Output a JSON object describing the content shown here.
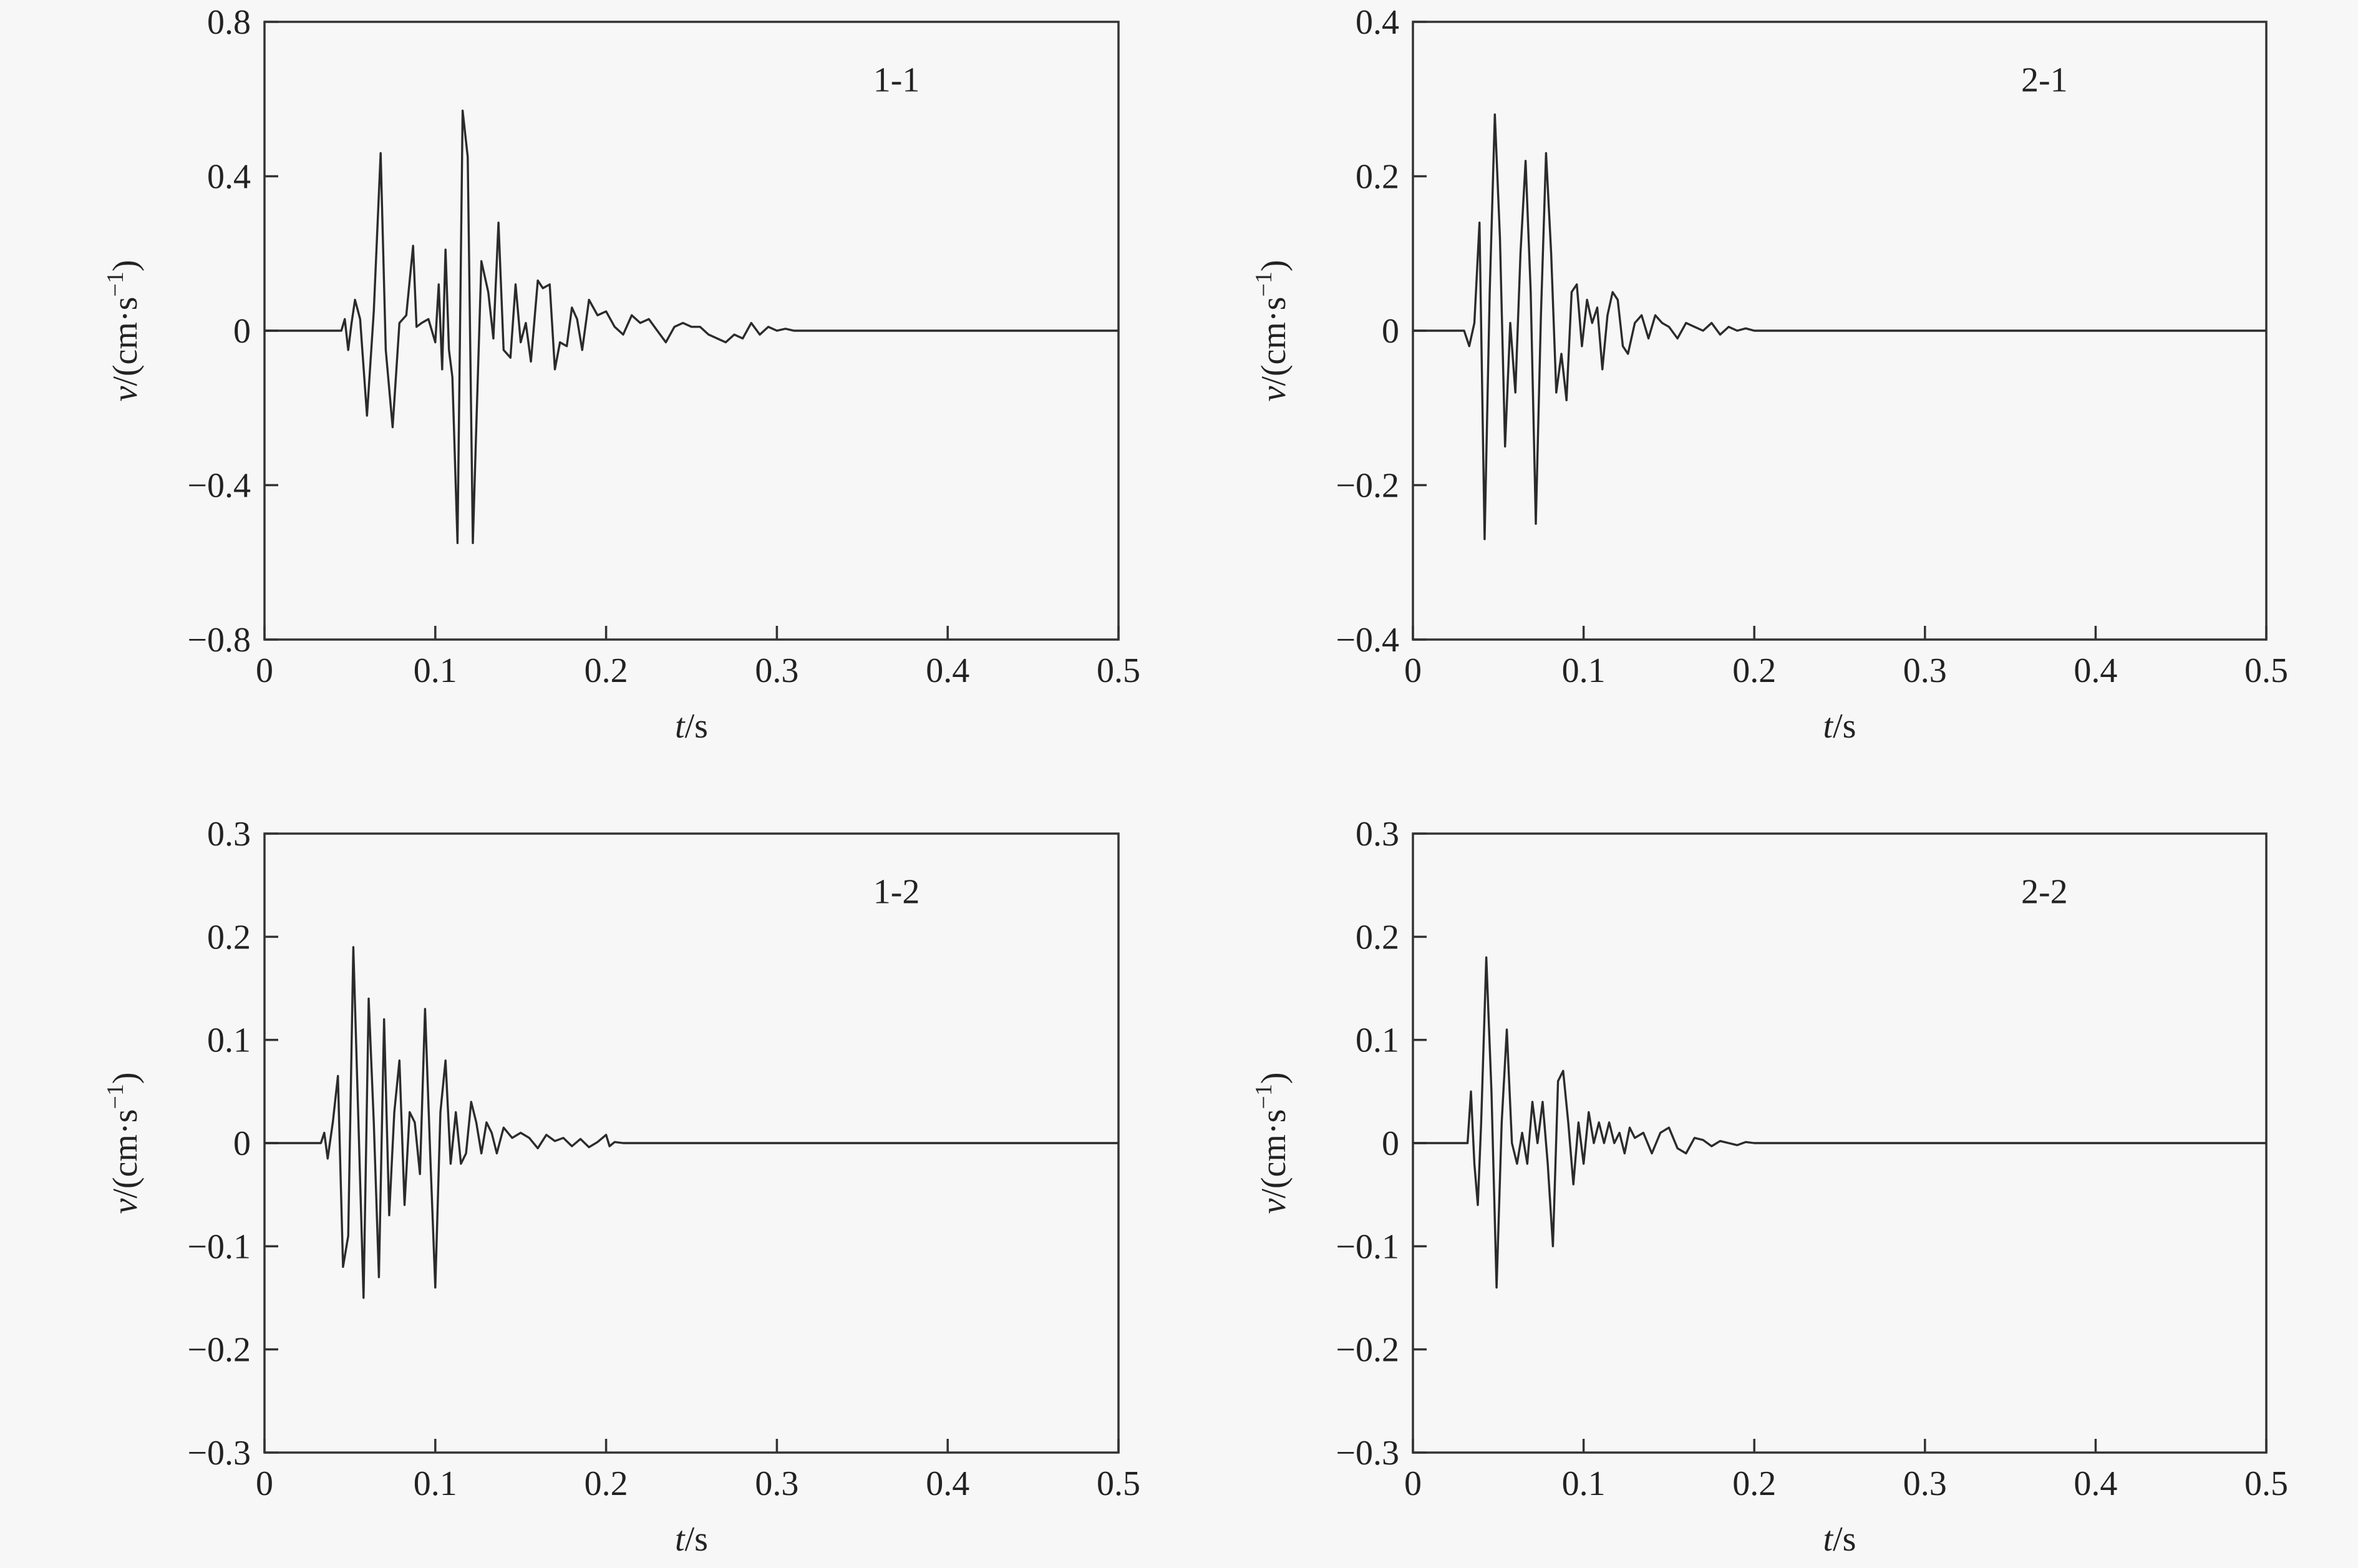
{
  "chart_data": [
    {
      "type": "line",
      "panel_label": "1-1",
      "xlabel_var": "t",
      "xlabel_unit": "/s",
      "ylabel_var": "v",
      "ylabel_unit_a": "/(cm·s",
      "ylabel_unit_b": "−1",
      "ylabel_unit_c": ")",
      "xlim": [
        0,
        0.5
      ],
      "ylim": [
        -0.8,
        0.8
      ],
      "xticks": [
        0,
        0.1,
        0.2,
        0.3,
        0.4,
        0.5
      ],
      "xtick_labels": [
        "0",
        "0.1",
        "0.2",
        "0.3",
        "0.4",
        "0.5"
      ],
      "yticks": [
        -0.8,
        -0.4,
        0,
        0.4,
        0.8
      ],
      "ytick_labels": [
        "−0.8",
        "−0.4",
        "0",
        "0.4",
        "0.8"
      ],
      "grid": false,
      "color": "#2b2b2b",
      "x": [
        0,
        0.045,
        0.047,
        0.049,
        0.051,
        0.053,
        0.056,
        0.06,
        0.064,
        0.068,
        0.071,
        0.075,
        0.079,
        0.083,
        0.087,
        0.089,
        0.092,
        0.096,
        0.1,
        0.102,
        0.104,
        0.106,
        0.108,
        0.11,
        0.113,
        0.116,
        0.119,
        0.122,
        0.124,
        0.127,
        0.131,
        0.134,
        0.137,
        0.14,
        0.144,
        0.147,
        0.15,
        0.153,
        0.156,
        0.16,
        0.163,
        0.167,
        0.17,
        0.173,
        0.177,
        0.18,
        0.183,
        0.186,
        0.19,
        0.195,
        0.2,
        0.205,
        0.21,
        0.215,
        0.22,
        0.225,
        0.23,
        0.235,
        0.24,
        0.245,
        0.25,
        0.255,
        0.26,
        0.265,
        0.27,
        0.275,
        0.28,
        0.285,
        0.29,
        0.295,
        0.3,
        0.305,
        0.31,
        0.5
      ],
      "y": [
        0,
        0,
        0.03,
        -0.05,
        0.02,
        0.08,
        0.03,
        -0.22,
        0.05,
        0.46,
        -0.05,
        -0.25,
        0.02,
        0.04,
        0.22,
        0.01,
        0.02,
        0.03,
        -0.03,
        0.12,
        -0.1,
        0.21,
        -0.05,
        -0.12,
        -0.55,
        0.57,
        0.45,
        -0.55,
        -0.25,
        0.18,
        0.1,
        -0.02,
        0.28,
        -0.05,
        -0.07,
        0.12,
        -0.03,
        0.02,
        -0.08,
        0.13,
        0.11,
        0.12,
        -0.1,
        -0.03,
        -0.04,
        0.06,
        0.03,
        -0.05,
        0.08,
        0.04,
        0.05,
        0.01,
        -0.01,
        0.04,
        0.02,
        0.03,
        0,
        -0.03,
        0.01,
        0.02,
        0.01,
        0.01,
        -0.01,
        -0.02,
        -0.03,
        -0.01,
        -0.02,
        0.02,
        -0.01,
        0.01,
        0,
        0.005,
        0,
        0
      ]
    },
    {
      "type": "line",
      "panel_label": "2-1",
      "xlabel_var": "t",
      "xlabel_unit": "/s",
      "ylabel_var": "v",
      "ylabel_unit_a": "/(cm·s",
      "ylabel_unit_b": "−1",
      "ylabel_unit_c": ")",
      "xlim": [
        0,
        0.5
      ],
      "ylim": [
        -0.4,
        0.4
      ],
      "xticks": [
        0,
        0.1,
        0.2,
        0.3,
        0.4,
        0.5
      ],
      "xtick_labels": [
        "0",
        "0.1",
        "0.2",
        "0.3",
        "0.4",
        "0.5"
      ],
      "yticks": [
        -0.4,
        -0.2,
        0,
        0.2,
        0.4
      ],
      "ytick_labels": [
        "−0.4",
        "−0.2",
        "0",
        "0.2",
        "0.4"
      ],
      "grid": false,
      "color": "#2b2b2b",
      "x": [
        0,
        0.03,
        0.033,
        0.036,
        0.039,
        0.042,
        0.045,
        0.048,
        0.051,
        0.054,
        0.057,
        0.06,
        0.063,
        0.066,
        0.069,
        0.072,
        0.075,
        0.078,
        0.081,
        0.084,
        0.087,
        0.09,
        0.093,
        0.096,
        0.099,
        0.102,
        0.105,
        0.108,
        0.111,
        0.114,
        0.117,
        0.12,
        0.123,
        0.126,
        0.13,
        0.134,
        0.138,
        0.142,
        0.146,
        0.15,
        0.155,
        0.16,
        0.165,
        0.17,
        0.175,
        0.18,
        0.185,
        0.19,
        0.195,
        0.2,
        0.21,
        0.22,
        0.5
      ],
      "y": [
        0,
        0,
        -0.02,
        0.01,
        0.14,
        -0.27,
        0.05,
        0.28,
        0.12,
        -0.15,
        0.01,
        -0.08,
        0.1,
        0.22,
        0.05,
        -0.25,
        0.02,
        0.23,
        0.1,
        -0.08,
        -0.03,
        -0.09,
        0.05,
        0.06,
        -0.02,
        0.04,
        0.01,
        0.03,
        -0.05,
        0.02,
        0.05,
        0.04,
        -0.02,
        -0.03,
        0.01,
        0.02,
        -0.01,
        0.02,
        0.01,
        0.005,
        -0.01,
        0.01,
        0.005,
        0,
        0.01,
        -0.005,
        0.005,
        0,
        0.003,
        0,
        0,
        0,
        0
      ]
    },
    {
      "type": "line",
      "panel_label": "1-2",
      "xlabel_var": "t",
      "xlabel_unit": "/s",
      "ylabel_var": "v",
      "ylabel_unit_a": "/(cm·s",
      "ylabel_unit_b": "−1",
      "ylabel_unit_c": ")",
      "xlim": [
        0,
        0.5
      ],
      "ylim": [
        -0.3,
        0.3
      ],
      "xticks": [
        0,
        0.1,
        0.2,
        0.3,
        0.4,
        0.5
      ],
      "xtick_labels": [
        "0",
        "0.1",
        "0.2",
        "0.3",
        "0.4",
        "0.5"
      ],
      "yticks": [
        -0.3,
        -0.2,
        -0.1,
        0,
        0.1,
        0.2,
        0.3
      ],
      "ytick_labels": [
        "−0.3",
        "−0.2",
        "−0.1",
        "0",
        "0.1",
        "0.2",
        "0.3"
      ],
      "grid": false,
      "color": "#2b2b2b",
      "x": [
        0,
        0.033,
        0.035,
        0.037,
        0.04,
        0.043,
        0.046,
        0.049,
        0.052,
        0.055,
        0.058,
        0.061,
        0.064,
        0.067,
        0.07,
        0.073,
        0.076,
        0.079,
        0.082,
        0.085,
        0.088,
        0.091,
        0.094,
        0.097,
        0.1,
        0.103,
        0.106,
        0.109,
        0.112,
        0.115,
        0.118,
        0.121,
        0.124,
        0.127,
        0.13,
        0.133,
        0.136,
        0.14,
        0.145,
        0.15,
        0.155,
        0.16,
        0.165,
        0.17,
        0.175,
        0.18,
        0.185,
        0.19,
        0.195,
        0.2,
        0.202,
        0.205,
        0.21,
        0.5
      ],
      "y": [
        0,
        0,
        0.01,
        -0.015,
        0.02,
        0.065,
        -0.12,
        -0.09,
        0.19,
        0.02,
        -0.15,
        0.14,
        0.02,
        -0.13,
        0.12,
        -0.07,
        0.03,
        0.08,
        -0.06,
        0.03,
        0.02,
        -0.03,
        0.13,
        -0.01,
        -0.14,
        0.03,
        0.08,
        -0.02,
        0.03,
        -0.02,
        -0.01,
        0.04,
        0.02,
        -0.01,
        0.02,
        0.01,
        -0.01,
        0.015,
        0.005,
        0.01,
        0.005,
        -0.005,
        0.008,
        0.002,
        0.005,
        -0.003,
        0.004,
        -0.004,
        0.001,
        0.008,
        -0.003,
        0.001,
        0,
        0
      ]
    },
    {
      "type": "line",
      "panel_label": "2-2",
      "xlabel_var": "t",
      "xlabel_unit": "/s",
      "ylabel_var": "v",
      "ylabel_unit_a": "/(cm·s",
      "ylabel_unit_b": "−1",
      "ylabel_unit_c": ")",
      "xlim": [
        0,
        0.5
      ],
      "ylim": [
        -0.3,
        0.3
      ],
      "xticks": [
        0,
        0.1,
        0.2,
        0.3,
        0.4,
        0.5
      ],
      "xtick_labels": [
        "0",
        "0.1",
        "0.2",
        "0.3",
        "0.4",
        "0.5"
      ],
      "yticks": [
        -0.3,
        -0.2,
        -0.1,
        0,
        0.1,
        0.2,
        0.3
      ],
      "ytick_labels": [
        "−0.3",
        "−0.2",
        "−0.1",
        "0",
        "0.1",
        "0.2",
        "0.3"
      ],
      "grid": false,
      "color": "#2b2b2b",
      "x": [
        0,
        0.032,
        0.034,
        0.036,
        0.038,
        0.04,
        0.043,
        0.046,
        0.049,
        0.052,
        0.055,
        0.058,
        0.061,
        0.064,
        0.067,
        0.07,
        0.073,
        0.076,
        0.079,
        0.082,
        0.085,
        0.088,
        0.091,
        0.094,
        0.097,
        0.1,
        0.103,
        0.106,
        0.109,
        0.112,
        0.115,
        0.118,
        0.121,
        0.124,
        0.127,
        0.13,
        0.135,
        0.14,
        0.145,
        0.15,
        0.155,
        0.16,
        0.165,
        0.17,
        0.175,
        0.18,
        0.185,
        0.19,
        0.195,
        0.2,
        0.5
      ],
      "y": [
        0,
        0,
        0.05,
        -0.02,
        -0.06,
        0.02,
        0.18,
        0.05,
        -0.14,
        0.02,
        0.11,
        0.0,
        -0.02,
        0.01,
        -0.02,
        0.04,
        0.0,
        0.04,
        -0.02,
        -0.1,
        0.06,
        0.07,
        0.02,
        -0.04,
        0.02,
        -0.02,
        0.03,
        0.0,
        0.02,
        0.0,
        0.02,
        0.0,
        0.01,
        -0.01,
        0.015,
        0.005,
        0.01,
        -0.01,
        0.01,
        0.015,
        -0.005,
        -0.01,
        0.005,
        0.003,
        -0.003,
        0.002,
        0,
        -0.002,
        0.001,
        0,
        0
      ]
    }
  ]
}
